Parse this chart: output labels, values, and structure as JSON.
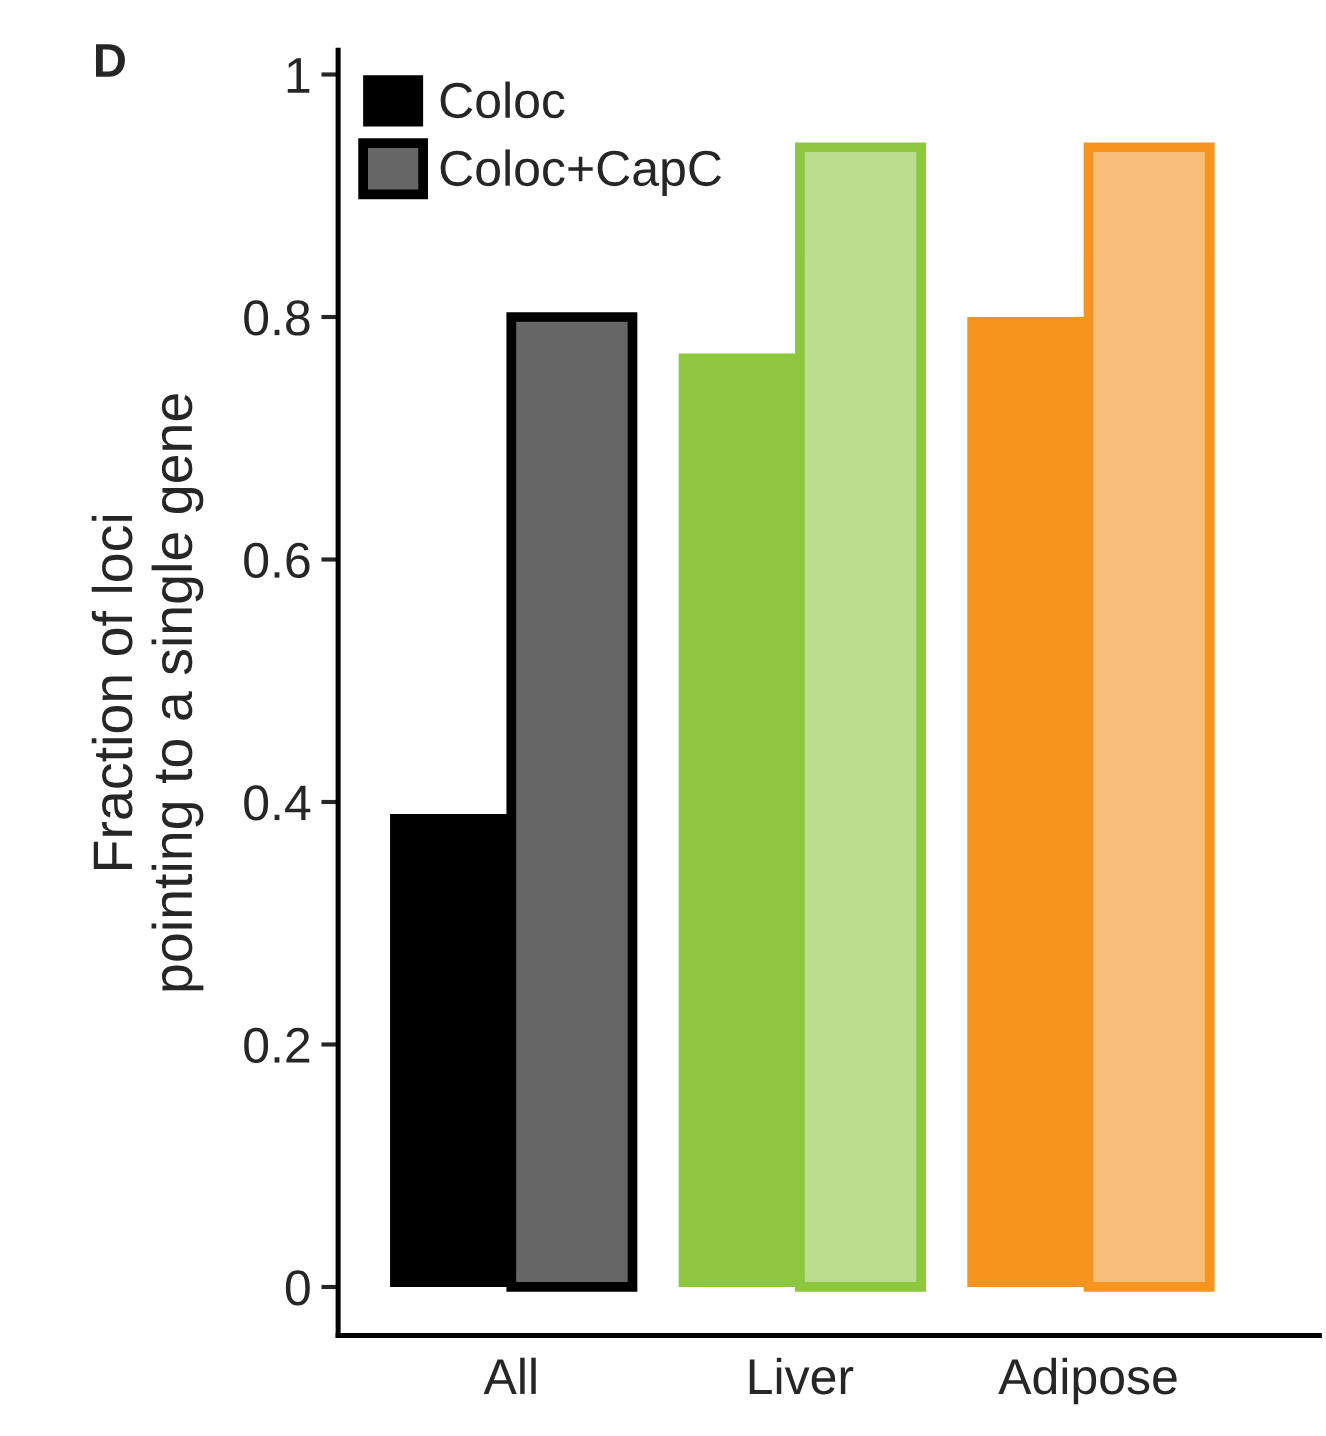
{
  "chart_data": {
    "type": "bar",
    "ylabel": "Fraction of loci\npointing to a single gene",
    "categories": [
      "All",
      "Liver",
      "Adipose"
    ],
    "series": [
      {
        "name": "Coloc",
        "color": "#000000",
        "colors": [
          "#000000",
          "#8dc63f",
          "#f7941d"
        ],
        "values": [
          0.39,
          0.77,
          0.8
        ]
      },
      {
        "name": "Coloc+CapC",
        "color": "#666666",
        "colors": [
          "#666666",
          "#bcdc8e",
          "#f8bd78"
        ],
        "values": [
          0.8,
          0.94,
          0.94
        ]
      }
    ],
    "ylim": [
      -0.04,
      1.02
    ],
    "yticks": [
      0,
      0.2,
      0.4,
      0.6,
      0.8,
      1
    ],
    "grid": false,
    "legend": "top left",
    "annotations": [
      "D"
    ]
  }
}
